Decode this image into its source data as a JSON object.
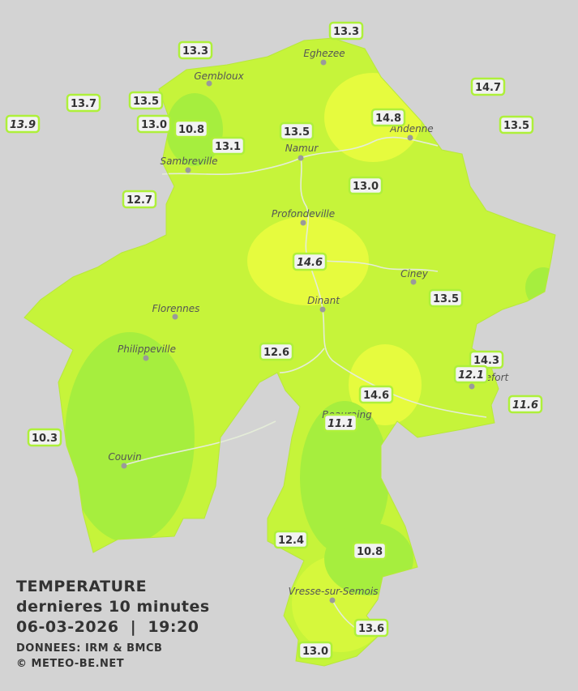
{
  "title": "TEMPERATURE",
  "subtitle": "dernieres 10 minutes",
  "datetime": "06-03-2026  |  19:20",
  "source": "DONNEES: IRM & BMCB",
  "credit": "© METEO-BE.NET",
  "cities": [
    {
      "name": "Eghezee"
    },
    {
      "name": "Gembloux"
    },
    {
      "name": "Andenne"
    },
    {
      "name": "Namur"
    },
    {
      "name": "Sambreville"
    },
    {
      "name": "Profondeville"
    },
    {
      "name": "Ciney"
    },
    {
      "name": "Dinant"
    },
    {
      "name": "Florennes"
    },
    {
      "name": "Philippeville"
    },
    {
      "name": "Rochefort"
    },
    {
      "name": "Beauraing"
    },
    {
      "name": "Couvin"
    },
    {
      "name": "Vresse-sur-Semois"
    }
  ],
  "stations": [
    {
      "label": "13.3"
    },
    {
      "label": "13.3"
    },
    {
      "label": "14.7"
    },
    {
      "label": "13.7"
    },
    {
      "label": "13.5"
    },
    {
      "label": "13.9",
      "italic": true
    },
    {
      "label": "13.0"
    },
    {
      "label": "10.8"
    },
    {
      "label": "14.8"
    },
    {
      "label": "13.5"
    },
    {
      "label": "13.5"
    },
    {
      "label": "13.1"
    },
    {
      "label": "13.0"
    },
    {
      "label": "12.7"
    },
    {
      "label": "14.6",
      "italic": true
    },
    {
      "label": "13.5"
    },
    {
      "label": "12.6"
    },
    {
      "label": "14.3"
    },
    {
      "label": "12.1",
      "italic": true
    },
    {
      "label": "14.6"
    },
    {
      "label": "11.6",
      "italic": true
    },
    {
      "label": "11.1",
      "italic": true
    },
    {
      "label": "10.3"
    },
    {
      "label": "12.4"
    },
    {
      "label": "10.8"
    },
    {
      "label": "13.6"
    },
    {
      "label": "13.0"
    }
  ]
}
